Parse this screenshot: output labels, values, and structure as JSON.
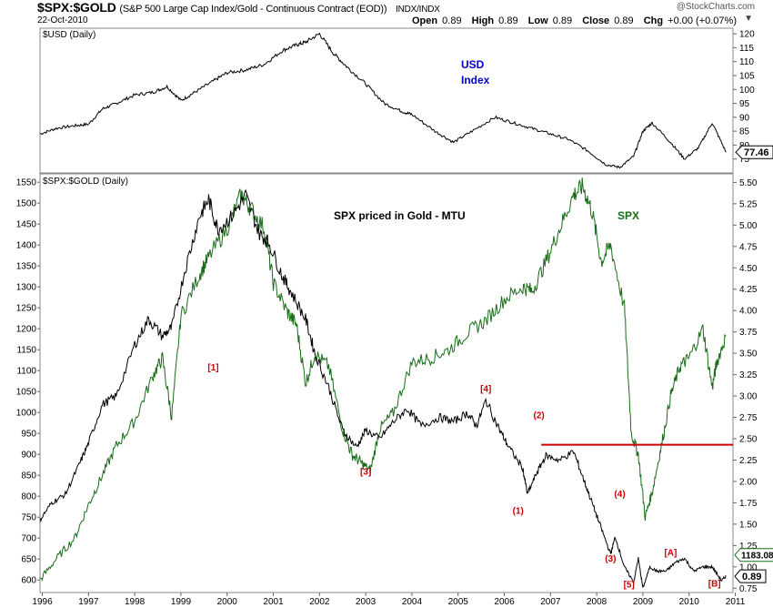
{
  "header": {
    "symbol": "$SPX:$GOLD",
    "description": "(S&P 500 Large Cap Index/Gold - Continuous Contract (EOD))",
    "exchange": "INDX/INDX",
    "date": "22-Oct-2010",
    "brand": "@StockCharts.com",
    "open_label": "Open",
    "open": "0.89",
    "high_label": "High",
    "high": "0.89",
    "low_label": "Low",
    "low": "0.89",
    "close_label": "Close",
    "close": "0.89",
    "chg_label": "Chg",
    "chg": "+0.00 (+0.07%)",
    "chg_arrow": "▼"
  },
  "colors": {
    "spx": "#1a6b1a",
    "ratio": "#000000",
    "hline": "#cc0000",
    "wave_label": "#cc0000",
    "usd_label": "#0000cc"
  },
  "chart_data": [
    {
      "type": "line",
      "title": "$USD (Daily)",
      "annotation": [
        "USD",
        "Index"
      ],
      "ylim": [
        70,
        122
      ],
      "yticks": [
        75,
        80,
        85,
        90,
        95,
        100,
        105,
        110,
        115,
        120
      ],
      "last_value": "77.46",
      "series": [
        {
          "name": "$USD",
          "x": [
            1995.95,
            1996.3,
            1996.7,
            1997.0,
            1997.3,
            1997.6,
            1998.0,
            1998.4,
            1998.7,
            1999.0,
            1999.3,
            1999.7,
            2000.0,
            2000.4,
            2000.8,
            2001.2,
            2001.5,
            2001.7,
            2002.0,
            2002.3,
            2002.6,
            2003.0,
            2003.4,
            2003.8,
            2004.0,
            2004.5,
            2004.9,
            2005.3,
            2005.8,
            2006.2,
            2006.6,
            2007.0,
            2007.4,
            2007.8,
            2008.2,
            2008.5,
            2008.8,
            2009.0,
            2009.2,
            2009.6,
            2009.9,
            2010.2,
            2010.5,
            2010.8
          ],
          "values": [
            84,
            86,
            87,
            87.5,
            93,
            95,
            98,
            99,
            101,
            96,
            99,
            103,
            106,
            107,
            109,
            114,
            116,
            117,
            120,
            113,
            108,
            102,
            95,
            92,
            91,
            85,
            81,
            85,
            90,
            88,
            86,
            84,
            82,
            78,
            73,
            72,
            76,
            85,
            88,
            81,
            75,
            79,
            88,
            77.46
          ]
        }
      ]
    },
    {
      "type": "line",
      "title": "$SPX:$GOLD (Daily)",
      "annotation": "SPX priced in Gold -  MTU",
      "xlim": [
        1995.95,
        2010.95
      ],
      "xticks": [
        "1996",
        "1997",
        "1998",
        "1999",
        "2000",
        "2001",
        "2002",
        "2003",
        "2004",
        "2005",
        "2006",
        "2007",
        "2008",
        "2009",
        "2010",
        "2011"
      ],
      "ylim": [
        0.7,
        5.6
      ],
      "yticks_right": [
        "0.75",
        "1.00",
        "1.25",
        "1.50",
        "1.75",
        "2.00",
        "2.25",
        "2.50",
        "2.75",
        "3.00",
        "3.25",
        "3.50",
        "3.75",
        "4.00",
        "4.25",
        "4.50",
        "4.75",
        "5.00",
        "5.25",
        "5.50"
      ],
      "y2lim": [
        570,
        1570
      ],
      "yticks_left": [
        "600",
        "650",
        "700",
        "750",
        "800",
        "850",
        "900",
        "950",
        "1000",
        "1050",
        "1100",
        "1150",
        "1200",
        "1250",
        "1300",
        "1350",
        "1400",
        "1450",
        "1500",
        "1550"
      ],
      "last_value_ratio": "0.89",
      "last_value_spx": "1183.08",
      "horizontal_line": {
        "value": 2.43,
        "from": 2006.8,
        "to": 2010.95
      },
      "series": [
        {
          "name": "$SPX:$GOLD",
          "axis": "right",
          "x": [
            1995.95,
            1996.2,
            1996.5,
            1996.8,
            1997.0,
            1997.3,
            1997.6,
            1998.0,
            1998.3,
            1998.6,
            1998.8,
            1999.1,
            1999.4,
            1999.6,
            1999.8,
            2000.1,
            2000.4,
            2000.7,
            2000.9,
            2001.2,
            2001.4,
            2001.7,
            2001.9,
            2002.2,
            2002.5,
            2002.8,
            2003.0,
            2003.3,
            2003.6,
            2003.9,
            2004.2,
            2004.6,
            2004.9,
            2005.2,
            2005.4,
            2005.6,
            2005.9,
            2006.1,
            2006.4,
            2006.5,
            2006.7,
            2006.9,
            2007.2,
            2007.5,
            2007.7,
            2007.9,
            2008.1,
            2008.3,
            2008.4,
            2008.6,
            2008.8,
            2008.9,
            2009.0,
            2009.15,
            2009.3,
            2009.5,
            2009.7,
            2009.9,
            2010.1,
            2010.3,
            2010.5,
            2010.7,
            2010.8
          ],
          "values": [
            1.55,
            1.75,
            1.85,
            2.2,
            2.45,
            2.9,
            3.0,
            3.6,
            3.9,
            3.7,
            3.8,
            4.5,
            5.1,
            5.3,
            4.95,
            5.1,
            5.35,
            4.9,
            4.8,
            4.4,
            4.2,
            3.9,
            3.5,
            3.1,
            2.6,
            2.4,
            2.6,
            2.5,
            2.7,
            2.85,
            2.65,
            2.75,
            2.7,
            2.8,
            2.65,
            2.95,
            2.6,
            2.4,
            2.15,
            1.85,
            2.1,
            2.3,
            2.25,
            2.35,
            2.05,
            1.75,
            1.45,
            1.15,
            1.35,
            1.0,
            0.82,
            1.1,
            0.75,
            1.0,
            0.95,
            0.95,
            1.05,
            1.1,
            0.95,
            1.0,
            1.0,
            0.84,
            0.89
          ]
        },
        {
          "name": "SPX",
          "axis": "left",
          "x": [
            1995.95,
            1996.3,
            1996.7,
            1997.0,
            1997.3,
            1997.6,
            1998.0,
            1998.4,
            1998.6,
            1998.8,
            1999.0,
            1999.4,
            1999.6,
            2000.0,
            2000.3,
            2000.5,
            2000.8,
            2001.0,
            2001.3,
            2001.5,
            2001.7,
            2001.9,
            2002.2,
            2002.5,
            2002.7,
            2002.9,
            2003.1,
            2003.3,
            2003.6,
            2004.0,
            2004.4,
            2004.8,
            2005.2,
            2005.6,
            2006.0,
            2006.4,
            2006.6,
            2006.9,
            2007.2,
            2007.5,
            2007.7,
            2007.9,
            2008.1,
            2008.3,
            2008.6,
            2008.75,
            2008.9,
            2009.05,
            2009.2,
            2009.4,
            2009.6,
            2009.8,
            2010.0,
            2010.3,
            2010.5,
            2010.6,
            2010.8
          ],
          "values": [
            600,
            650,
            700,
            780,
            850,
            920,
            980,
            1090,
            1130,
            990,
            1230,
            1330,
            1370,
            1440,
            1520,
            1490,
            1440,
            1310,
            1240,
            1210,
            1070,
            1140,
            1110,
            960,
            900,
            880,
            860,
            960,
            1000,
            1120,
            1130,
            1150,
            1190,
            1220,
            1270,
            1300,
            1290,
            1360,
            1440,
            1520,
            1540,
            1480,
            1360,
            1400,
            1250,
            950,
            900,
            750,
            810,
            920,
            1040,
            1110,
            1130,
            1200,
            1060,
            1120,
            1183.08
          ]
        }
      ],
      "wave_labels": [
        {
          "text": "[1]",
          "x": 1999.7,
          "y": 3.3
        },
        {
          "text": "[3]",
          "x": 2003.0,
          "y": 2.08
        },
        {
          "text": "[4]",
          "x": 2005.6,
          "y": 3.05
        },
        {
          "text": "(1)",
          "x": 2006.3,
          "y": 1.62
        },
        {
          "text": "(2)",
          "x": 2006.75,
          "y": 2.74
        },
        {
          "text": "(3)",
          "x": 2008.3,
          "y": 1.06
        },
        {
          "text": "(4)",
          "x": 2008.5,
          "y": 1.82
        },
        {
          "text": "[5]",
          "x": 2008.7,
          "y": 0.76
        },
        {
          "text": "[A]",
          "x": 2009.6,
          "y": 1.13
        },
        {
          "text": "[B]",
          "x": 2010.55,
          "y": 0.77
        }
      ],
      "spx_label": "SPX"
    }
  ]
}
